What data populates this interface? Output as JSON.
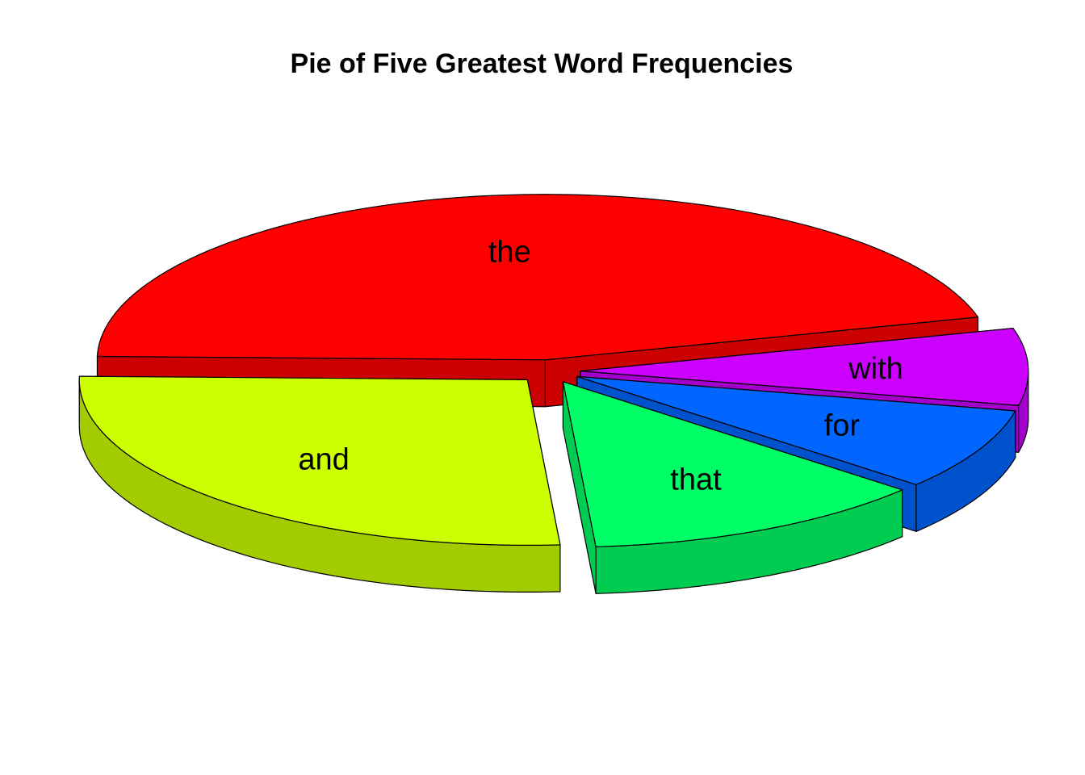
{
  "chart_data": {
    "type": "pie",
    "title": "Pie of Five Greatest Word Frequencies",
    "three_d": true,
    "exploded": true,
    "slices": [
      {
        "label": "the",
        "value": 45.5,
        "color": "#FF0000",
        "side_color": "#CC0000"
      },
      {
        "label": "and",
        "value": 26.5,
        "color": "#CCFF00",
        "side_color": "#A3CC00"
      },
      {
        "label": "that",
        "value": 12.5,
        "color": "#00FF66",
        "side_color": "#00CC52"
      },
      {
        "label": "for",
        "value": 8.0,
        "color": "#0066FF",
        "side_color": "#0052CC"
      },
      {
        "label": "with",
        "value": 7.5,
        "color": "#CC00FF",
        "side_color": "#A300CC"
      }
    ]
  }
}
